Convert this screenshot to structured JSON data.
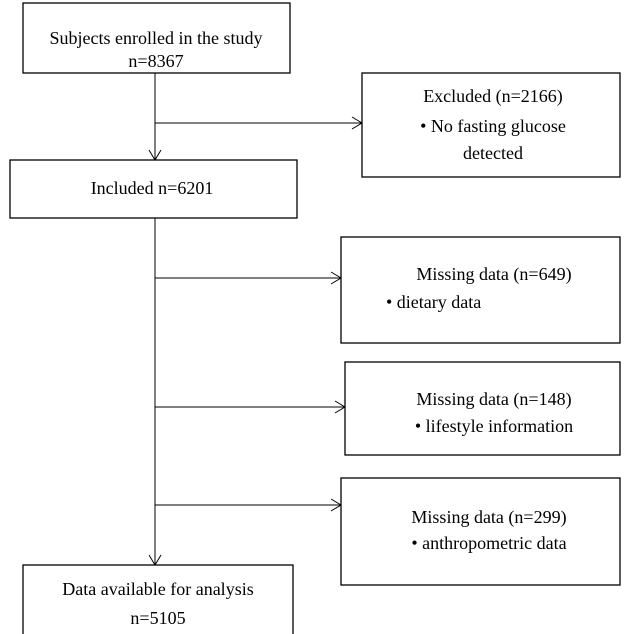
{
  "nodes": [
    {
      "lines": [
        "Subjects enrolled in the study",
        "n=8367"
      ]
    },
    {
      "lines": [
        "Excluded (n=2166)",
        "• No fasting glucose",
        "detected"
      ]
    },
    {
      "lines": [
        "Included n=6201"
      ]
    },
    {
      "lines": [
        "Missing data (n=649)",
        "•  dietary data"
      ]
    },
    {
      "lines": [
        "Missing data (n=148)",
        "•  lifestyle information"
      ]
    },
    {
      "lines": [
        "Missing data (n=299)",
        "• anthropometric data"
      ]
    },
    {
      "lines": [
        "Data available for analysis",
        "n=5105"
      ]
    }
  ]
}
